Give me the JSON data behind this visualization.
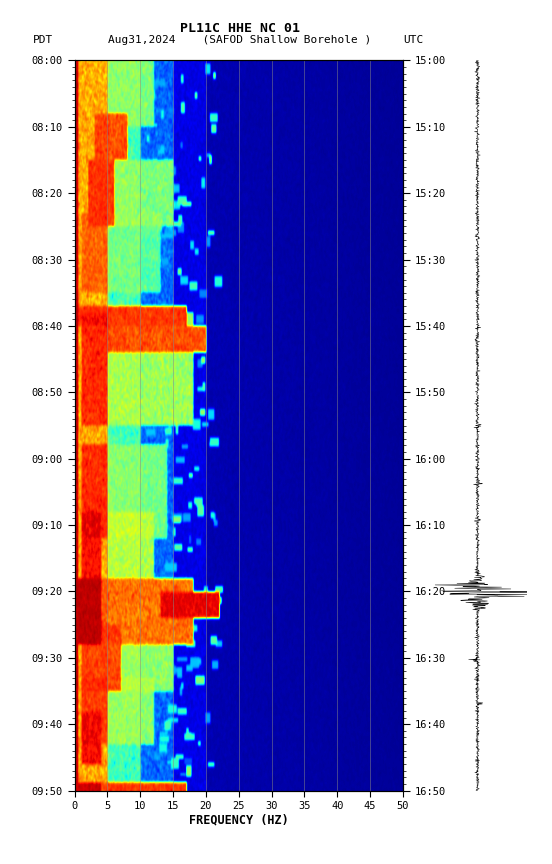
{
  "title_line1": "PL11C HHE NC 01",
  "title_line2_left": "PDT",
  "title_line2_mid": "Aug31,2024    (SAFOD Shallow Borehole )",
  "title_line2_right": "UTC",
  "xlabel": "FREQUENCY (HZ)",
  "freq_min": 0,
  "freq_max": 50,
  "pdt_ticks": [
    "08:00",
    "08:10",
    "08:20",
    "08:30",
    "08:40",
    "08:50",
    "09:00",
    "09:10",
    "09:20",
    "09:30",
    "09:40",
    "09:50"
  ],
  "utc_ticks": [
    "15:00",
    "15:10",
    "15:20",
    "15:30",
    "15:40",
    "15:50",
    "16:00",
    "16:10",
    "16:20",
    "16:30",
    "16:40",
    "16:50"
  ],
  "freq_ticks": [
    0,
    5,
    10,
    15,
    20,
    25,
    30,
    35,
    40,
    45,
    50
  ],
  "vertical_lines_freq": [
    5,
    10,
    15,
    20,
    25,
    30,
    35,
    40,
    45
  ],
  "background_color": "#ffffff",
  "seed": 42,
  "n_time": 660,
  "n_freq": 500,
  "fig_width": 5.52,
  "fig_height": 8.64,
  "dpi": 100
}
